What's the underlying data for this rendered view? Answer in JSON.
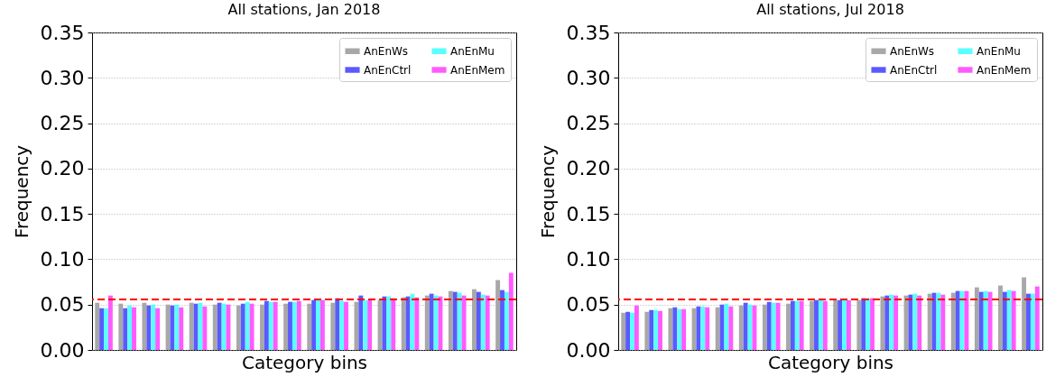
{
  "chart_data": [
    {
      "type": "bar",
      "title": "All stations,  Jan 2018",
      "xlabel": "Category bins",
      "ylabel": "Frequency",
      "categories": [
        null,
        null,
        null,
        null,
        null,
        null,
        null,
        null,
        null,
        null,
        null,
        null,
        null,
        null,
        null,
        null,
        null,
        null
      ],
      "series": [
        {
          "name": "AnEnWs",
          "color": "#a8a8a8",
          "values": [
            0.052,
            0.051,
            0.052,
            0.05,
            0.052,
            0.05,
            0.049,
            0.05,
            0.051,
            0.051,
            0.052,
            0.053,
            0.055,
            0.058,
            0.06,
            0.065,
            0.067,
            0.077
          ]
        },
        {
          "name": "AnEnCtrl",
          "color": "#5a5aff",
          "values": [
            0.046,
            0.046,
            0.049,
            0.049,
            0.051,
            0.052,
            0.051,
            0.054,
            0.053,
            0.055,
            0.057,
            0.06,
            0.059,
            0.059,
            0.062,
            0.064,
            0.064,
            0.066
          ]
        },
        {
          "name": "AnEnMu",
          "color": "#5affff",
          "values": [
            0.046,
            0.049,
            0.05,
            0.05,
            0.052,
            0.051,
            0.053,
            0.053,
            0.053,
            0.055,
            0.054,
            0.055,
            0.059,
            0.062,
            0.06,
            0.063,
            0.061,
            0.064
          ]
        },
        {
          "name": "AnEnMem",
          "color": "#ff5aff",
          "values": [
            0.06,
            0.047,
            0.046,
            0.047,
            0.048,
            0.05,
            0.051,
            0.053,
            0.054,
            0.055,
            0.053,
            0.055,
            0.057,
            0.058,
            0.059,
            0.06,
            0.06,
            0.085
          ]
        }
      ],
      "ylim": [
        0,
        0.35
      ],
      "yticks": [
        {
          "value": 0,
          "label": "0.00"
        },
        0.05,
        {
          "value": 0.1,
          "label": "0.10"
        },
        0.15,
        {
          "value": 0.2,
          "label": "0.20"
        },
        0.25,
        {
          "value": 0.3,
          "label": "0.30"
        },
        0.35
      ],
      "ref_lines": [
        {
          "axis": "y",
          "value": 0.0556,
          "color": "#ff0000",
          "line_style": "dashed"
        }
      ],
      "grid": "y",
      "legend": "top right",
      "tick_labels": "y"
    },
    {
      "type": "bar",
      "title": "All stations,  Jul 2018",
      "xlabel": "Category bins",
      "ylabel": "Frequency",
      "categories": [
        null,
        null,
        null,
        null,
        null,
        null,
        null,
        null,
        null,
        null,
        null,
        null,
        null,
        null,
        null,
        null,
        null,
        null
      ],
      "series": [
        {
          "name": "AnEnWs",
          "color": "#a8a8a8",
          "values": [
            0.041,
            0.042,
            0.046,
            0.046,
            0.047,
            0.049,
            0.05,
            0.051,
            0.054,
            0.055,
            0.055,
            0.059,
            0.06,
            0.062,
            0.063,
            0.069,
            0.071,
            0.08
          ]
        },
        {
          "name": "AnEnCtrl",
          "color": "#5a5aff",
          "values": [
            0.042,
            0.044,
            0.047,
            0.048,
            0.05,
            0.052,
            0.053,
            0.054,
            0.055,
            0.055,
            0.057,
            0.06,
            0.061,
            0.063,
            0.065,
            0.064,
            0.064,
            0.062
          ]
        },
        {
          "name": "AnEnMu",
          "color": "#5affff",
          "values": [
            0.041,
            0.044,
            0.045,
            0.048,
            0.051,
            0.05,
            0.052,
            0.054,
            0.055,
            0.055,
            0.057,
            0.061,
            0.062,
            0.063,
            0.065,
            0.065,
            0.066,
            0.062
          ]
        },
        {
          "name": "AnEnMem",
          "color": "#ff5aff",
          "values": [
            0.049,
            0.043,
            0.045,
            0.047,
            0.048,
            0.049,
            0.052,
            0.054,
            0.054,
            0.055,
            0.057,
            0.06,
            0.06,
            0.061,
            0.065,
            0.064,
            0.065,
            0.07
          ]
        }
      ],
      "ylim": [
        0,
        0.35
      ],
      "yticks": [
        {
          "value": 0,
          "label": "0.00"
        },
        0.05,
        {
          "value": 0.1,
          "label": "0.10"
        },
        0.15,
        {
          "value": 0.2,
          "label": "0.20"
        },
        0.25,
        {
          "value": 0.3,
          "label": "0.30"
        },
        0.35
      ],
      "ref_lines": [
        {
          "axis": "y",
          "value": 0.0556,
          "color": "#ff0000",
          "line_style": "dashed"
        }
      ],
      "grid": "y",
      "legend": "top right",
      "tick_labels": "y"
    }
  ]
}
